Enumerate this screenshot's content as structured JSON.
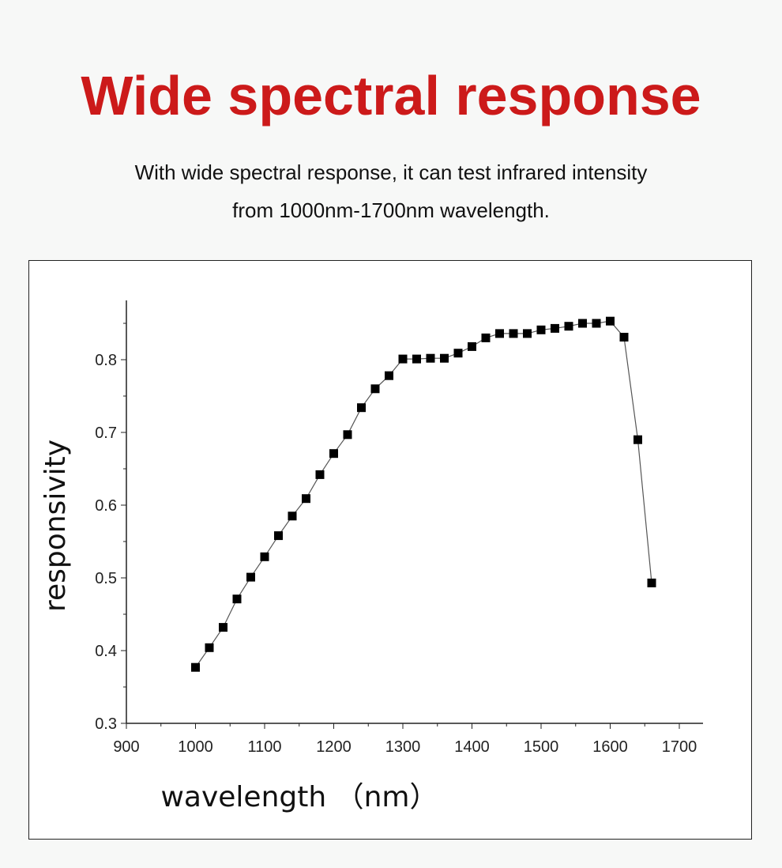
{
  "page": {
    "title": "Wide spectral response",
    "subtitle_line1": "With wide spectral response, it can test infrared intensity",
    "subtitle_line2": "from 1000nm-1700nm wavelength."
  },
  "colors": {
    "title": "#cc1a1a",
    "text": "#111111",
    "marker": "#000000",
    "background": "#f7f8f7"
  },
  "chart_data": {
    "type": "line",
    "title": "",
    "xlabel": "wavelength （nm）",
    "ylabel": "responsivity",
    "xlim": [
      900,
      1700
    ],
    "ylim": [
      0.3,
      0.88
    ],
    "x_ticks": [
      900,
      1000,
      1100,
      1200,
      1300,
      1400,
      1500,
      1600,
      1700
    ],
    "y_ticks": [
      0.3,
      0.4,
      0.5,
      0.6,
      0.7,
      0.8
    ],
    "x_tick_labels": [
      "900",
      "1000",
      "1100",
      "1200",
      "1300",
      "1400",
      "1500",
      "1600",
      "1700"
    ],
    "y_tick_labels": [
      "0.3",
      "0.4",
      "0.5",
      "0.6",
      "0.7",
      "0.8"
    ],
    "grid": false,
    "legend": "none",
    "marker": "square",
    "series": [
      {
        "x": [
          1000,
          1020,
          1040,
          1060,
          1080,
          1100,
          1120,
          1140,
          1160,
          1180,
          1200,
          1220,
          1240,
          1260,
          1280,
          1300,
          1320,
          1340,
          1360,
          1380,
          1400,
          1420,
          1440,
          1460,
          1480,
          1500,
          1520,
          1540,
          1560,
          1580,
          1600,
          1620,
          1640,
          1660
        ],
        "y": [
          0.377,
          0.404,
          0.432,
          0.471,
          0.501,
          0.529,
          0.558,
          0.585,
          0.609,
          0.642,
          0.671,
          0.697,
          0.734,
          0.76,
          0.778,
          0.801,
          0.801,
          0.802,
          0.802,
          0.809,
          0.818,
          0.83,
          0.836,
          0.836,
          0.836,
          0.841,
          0.843,
          0.846,
          0.85,
          0.85,
          0.853,
          0.831,
          0.69,
          0.493
        ]
      }
    ]
  }
}
